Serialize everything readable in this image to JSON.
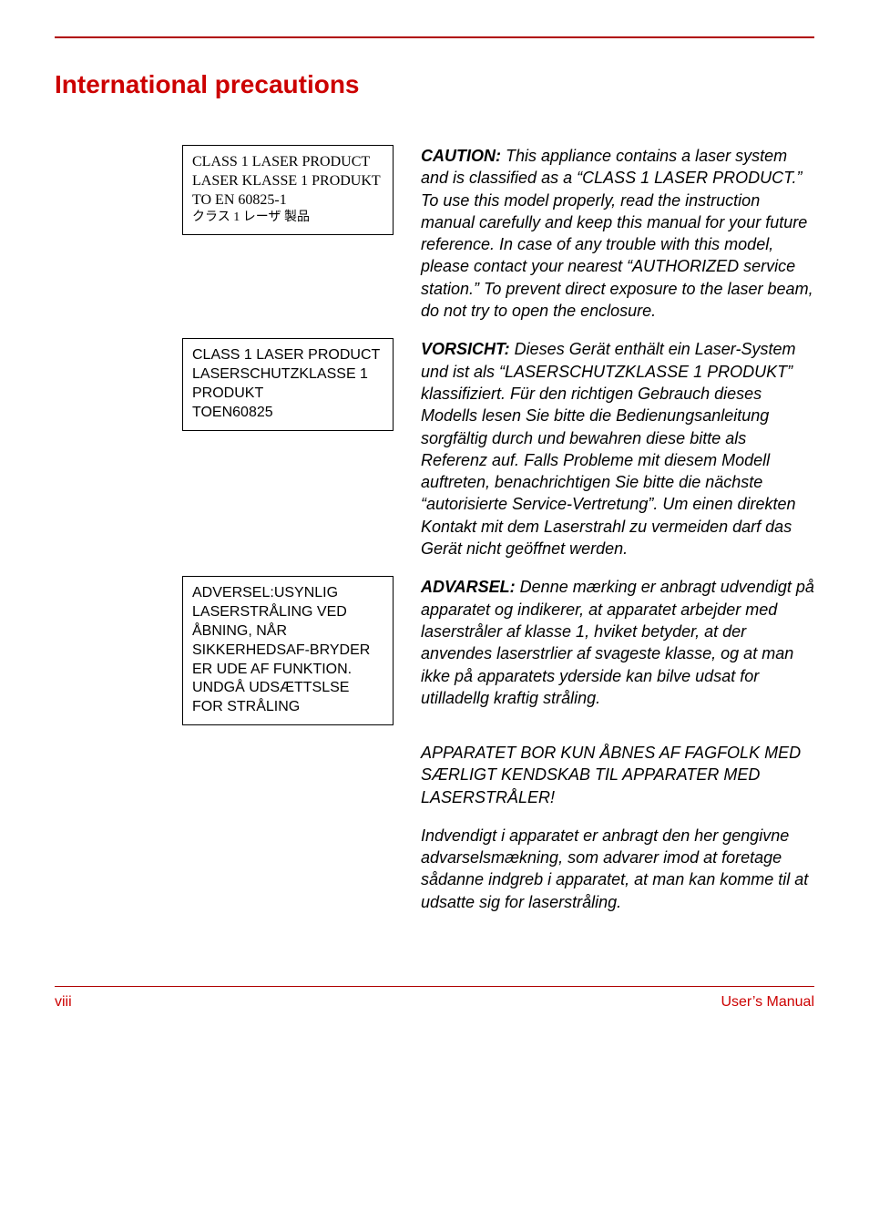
{
  "colors": {
    "accent": "#cc0000",
    "rule": "#b00000",
    "text": "#000000",
    "background": "#ffffff",
    "box_border": "#000000"
  },
  "typography": {
    "title_fontsize": 28,
    "body_fontsize": 18,
    "label_fontsize": 16,
    "footer_fontsize": 16,
    "body_font": "Arial",
    "serif_font": "Times New Roman"
  },
  "title": "International precautions",
  "sections": [
    {
      "label_lines": [
        {
          "text": "CLASS 1 LASER PRODUCT",
          "style": "serif"
        },
        {
          "text": "LASER KLASSE 1 PRODUKT",
          "style": "serif"
        },
        {
          "text": "TO EN 60825-1",
          "style": "serif"
        },
        {
          "text": "クラス 1 レーザ 製品",
          "style": "jp"
        }
      ],
      "paragraphs": [
        {
          "lead": "CAUTION:",
          "body": " This appliance contains a laser system and is classified as a “CLASS 1 LASER PRODUCT.” To use this model properly, read the instruction manual carefully and keep this manual for your future reference. In case of any trouble with this model, please contact your nearest “AUTHORIZED service station.” To prevent direct exposure to the laser beam, do not try to open the enclosure."
        }
      ]
    },
    {
      "label_lines": [
        {
          "text": "CLASS 1 LASER PRODUCT",
          "style": "sans"
        },
        {
          "text": "LASERSCHUTZKLASSE 1 PRODUKT",
          "style": "sans"
        },
        {
          "text": "TOEN60825",
          "style": "sans"
        }
      ],
      "paragraphs": [
        {
          "lead": "VORSICHT:",
          "body": " Dieses Gerät enthält ein Laser-System und ist als “LASERSCHUTZKLASSE 1 PRODUKT” klassifiziert. Für den richtigen Gebrauch dieses Modells lesen Sie bitte die Bedienungsanleitung sorgfältig durch und bewahren diese bitte als Referenz auf. Falls Probleme mit diesem Modell auftreten, benachrichtigen Sie bitte die nächste “autorisierte Service-Vertretung”. Um einen direkten Kontakt mit dem Laserstrahl zu vermeiden darf das Gerät nicht geöffnet werden."
        }
      ]
    },
    {
      "label_lines": [
        {
          "text": "ADVERSEL:USYNLIG LASERSTRÅLING VED ÅBNING, NÅR SIKKERHEDSAF-BRYDER ER UDE AF FUNKTION. UNDGÅ UDSÆTTSLSE FOR STRÅLING",
          "style": "sans"
        }
      ],
      "paragraphs": [
        {
          "lead": "ADVARSEL:",
          "body": " Denne mærking er anbragt udvendigt på apparatet og indikerer, at apparatet arbejder med laserstråler af klasse 1, hviket betyder, at der anvendes laserstrlier af svageste klasse, og at man ikke på apparatets yderside kan bilve udsat for utilladellg kraftig stråling."
        },
        {
          "lead": "",
          "body": "APPARATET BOR KUN ÅBNES AF FAGFOLK MED SÆRLIGT KENDSKAB TIL APPARATER MED LASERSTRÅLER!"
        },
        {
          "lead": "",
          "body": "Indvendigt i apparatet er anbragt den her gengivne advarselsmækning, som advarer imod at foretage sådanne indgreb i apparatet, at man kan komme til at udsatte sig for laserstråling."
        }
      ]
    }
  ],
  "footer": {
    "page_label": "viii",
    "doc_label": "User’s Manual"
  }
}
